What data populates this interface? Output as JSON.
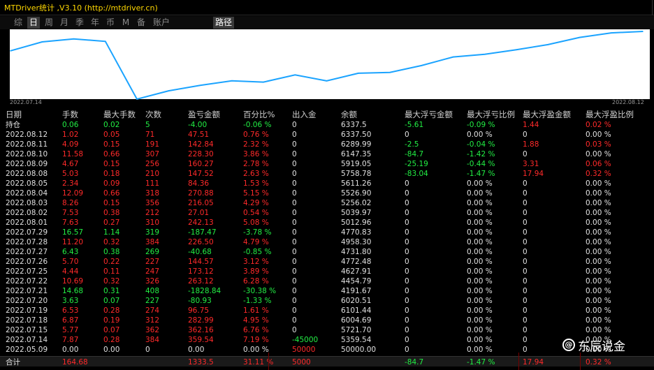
{
  "window": {
    "title": "MTDriver统计 ,V3.10 (http://mtdriver.cn)"
  },
  "toolbar": {
    "tabs": [
      "综",
      "日",
      "周",
      "月",
      "季",
      "年",
      "币",
      "M",
      "备",
      "账户"
    ],
    "active": "日",
    "route_label": "路径"
  },
  "chart_data": {
    "type": "line",
    "x_start_label": "2022.07.14",
    "x_end_label": "2022.08.12",
    "series": [
      {
        "values": [
          5721.7,
          6004.69,
          6101.44,
          6020.51,
          4191.67,
          4454.79,
          4627.91,
          4772.48,
          4731.8,
          4958.3,
          4770.83,
          5012.96,
          5039.97,
          5256.02,
          5526.9,
          5611.26,
          5758.78,
          5919.05,
          6147.35,
          6289.99,
          6337.5
        ]
      }
    ],
    "color": "#1aa3ff"
  },
  "headers": [
    "日期",
    "手数",
    "最大手数",
    "次数",
    "盈亏金额",
    "百分比%",
    "出入金",
    "余额",
    "最大浮亏金额",
    "最大浮亏比例",
    "最大浮盈金额",
    "最大浮盈比例"
  ],
  "rows": [
    {
      "c": [
        "持仓",
        "0.06",
        "0.02",
        "5",
        "-4.00",
        "-0.06 %",
        "0",
        "6337.5",
        "-5.61",
        "-0.09 %",
        "1.44",
        "0.02 %"
      ],
      "k": [
        "w",
        "g",
        "g",
        "g",
        "g",
        "g",
        "w",
        "w",
        "g",
        "g",
        "r",
        "r"
      ]
    },
    {
      "c": [
        "2022.08.12",
        "1.02",
        "0.05",
        "71",
        "47.51",
        "0.76 %",
        "0",
        "6337.50",
        "0",
        "0.00 %",
        "0",
        "0.00 %"
      ],
      "k": [
        "w",
        "r",
        "r",
        "r",
        "r",
        "r",
        "w",
        "w",
        "w",
        "w",
        "w",
        "w"
      ]
    },
    {
      "c": [
        "2022.08.11",
        "4.09",
        "0.15",
        "191",
        "142.84",
        "2.32 %",
        "0",
        "6289.99",
        "-2.5",
        "-0.04 %",
        "1.88",
        "0.03 %"
      ],
      "k": [
        "w",
        "r",
        "r",
        "r",
        "r",
        "r",
        "w",
        "w",
        "g",
        "g",
        "r",
        "r"
      ]
    },
    {
      "c": [
        "2022.08.10",
        "11.58",
        "0.66",
        "307",
        "228.30",
        "3.86 %",
        "0",
        "6147.35",
        "-84.7",
        "-1.42 %",
        "0",
        "0.00 %"
      ],
      "k": [
        "w",
        "r",
        "r",
        "r",
        "r",
        "r",
        "w",
        "w",
        "g",
        "g",
        "w",
        "w"
      ]
    },
    {
      "c": [
        "2022.08.09",
        "4.67",
        "0.15",
        "256",
        "160.27",
        "2.78 %",
        "0",
        "5919.05",
        "-25.19",
        "-0.44 %",
        "3.31",
        "0.06 %"
      ],
      "k": [
        "w",
        "r",
        "r",
        "r",
        "r",
        "r",
        "w",
        "w",
        "g",
        "g",
        "r",
        "r"
      ]
    },
    {
      "c": [
        "2022.08.08",
        "5.03",
        "0.18",
        "210",
        "147.52",
        "2.63 %",
        "0",
        "5758.78",
        "-83.04",
        "-1.47 %",
        "17.94",
        "0.32 %"
      ],
      "k": [
        "w",
        "r",
        "r",
        "r",
        "r",
        "r",
        "w",
        "w",
        "g",
        "g",
        "r",
        "r"
      ]
    },
    {
      "c": [
        "2022.08.05",
        "2.34",
        "0.09",
        "111",
        "84.36",
        "1.53 %",
        "0",
        "5611.26",
        "0",
        "0.00 %",
        "0",
        "0.00 %"
      ],
      "k": [
        "w",
        "r",
        "r",
        "r",
        "r",
        "r",
        "w",
        "w",
        "w",
        "w",
        "w",
        "w"
      ]
    },
    {
      "c": [
        "2022.08.04",
        "12.09",
        "0.66",
        "318",
        "270.88",
        "5.15 %",
        "0",
        "5526.90",
        "0",
        "0.00 %",
        "0",
        "0.00 %"
      ],
      "k": [
        "w",
        "r",
        "r",
        "r",
        "r",
        "r",
        "w",
        "w",
        "w",
        "w",
        "w",
        "w"
      ]
    },
    {
      "c": [
        "2022.08.03",
        "8.26",
        "0.15",
        "356",
        "216.05",
        "4.29 %",
        "0",
        "5256.02",
        "0",
        "0.00 %",
        "0",
        "0.00 %"
      ],
      "k": [
        "w",
        "r",
        "r",
        "r",
        "r",
        "r",
        "w",
        "w",
        "w",
        "w",
        "w",
        "w"
      ]
    },
    {
      "c": [
        "2022.08.02",
        "7.53",
        "0.38",
        "212",
        "27.01",
        "0.54 %",
        "0",
        "5039.97",
        "0",
        "0.00 %",
        "0",
        "0.00 %"
      ],
      "k": [
        "w",
        "r",
        "r",
        "r",
        "r",
        "r",
        "w",
        "w",
        "w",
        "w",
        "w",
        "w"
      ]
    },
    {
      "c": [
        "2022.08.01",
        "7.63",
        "0.27",
        "310",
        "242.13",
        "5.08 %",
        "0",
        "5012.96",
        "0",
        "0.00 %",
        "0",
        "0.00 %"
      ],
      "k": [
        "w",
        "r",
        "r",
        "r",
        "r",
        "r",
        "w",
        "w",
        "w",
        "w",
        "w",
        "w"
      ]
    },
    {
      "c": [
        "2022.07.29",
        "16.57",
        "1.14",
        "319",
        "-187.47",
        "-3.78 %",
        "0",
        "4770.83",
        "0",
        "0.00 %",
        "0",
        "0.00 %"
      ],
      "k": [
        "w",
        "g",
        "g",
        "g",
        "g",
        "g",
        "w",
        "w",
        "w",
        "w",
        "w",
        "w"
      ]
    },
    {
      "c": [
        "2022.07.28",
        "11.20",
        "0.32",
        "384",
        "226.50",
        "4.79 %",
        "0",
        "4958.30",
        "0",
        "0.00 %",
        "0",
        "0.00 %"
      ],
      "k": [
        "w",
        "r",
        "r",
        "r",
        "r",
        "r",
        "w",
        "w",
        "w",
        "w",
        "w",
        "w"
      ]
    },
    {
      "c": [
        "2022.07.27",
        "6.43",
        "0.38",
        "269",
        "-40.68",
        "-0.85 %",
        "0",
        "4731.80",
        "0",
        "0.00 %",
        "0",
        "0.00 %"
      ],
      "k": [
        "w",
        "g",
        "g",
        "g",
        "g",
        "g",
        "w",
        "w",
        "w",
        "w",
        "w",
        "w"
      ]
    },
    {
      "c": [
        "2022.07.26",
        "5.70",
        "0.22",
        "227",
        "144.57",
        "3.12 %",
        "0",
        "4772.48",
        "0",
        "0.00 %",
        "0",
        "0.00 %"
      ],
      "k": [
        "w",
        "r",
        "r",
        "r",
        "r",
        "r",
        "w",
        "w",
        "w",
        "w",
        "w",
        "w"
      ]
    },
    {
      "c": [
        "2022.07.25",
        "4.44",
        "0.11",
        "247",
        "173.12",
        "3.89 %",
        "0",
        "4627.91",
        "0",
        "0.00 %",
        "0",
        "0.00 %"
      ],
      "k": [
        "w",
        "r",
        "r",
        "r",
        "r",
        "r",
        "w",
        "w",
        "w",
        "w",
        "w",
        "w"
      ]
    },
    {
      "c": [
        "2022.07.22",
        "10.69",
        "0.32",
        "326",
        "263.12",
        "6.28 %",
        "0",
        "4454.79",
        "0",
        "0.00 %",
        "0",
        "0.00 %"
      ],
      "k": [
        "w",
        "r",
        "r",
        "r",
        "r",
        "r",
        "w",
        "w",
        "w",
        "w",
        "w",
        "w"
      ]
    },
    {
      "c": [
        "2022.07.21",
        "14.68",
        "0.31",
        "408",
        "-1828.84",
        "-30.38 %",
        "0",
        "4191.67",
        "0",
        "0.00 %",
        "0",
        "0.00 %"
      ],
      "k": [
        "w",
        "g",
        "g",
        "g",
        "g",
        "g",
        "w",
        "w",
        "w",
        "w",
        "w",
        "w"
      ]
    },
    {
      "c": [
        "2022.07.20",
        "3.63",
        "0.07",
        "227",
        "-80.93",
        "-1.33 %",
        "0",
        "6020.51",
        "0",
        "0.00 %",
        "0",
        "0.00 %"
      ],
      "k": [
        "w",
        "g",
        "g",
        "g",
        "g",
        "g",
        "w",
        "w",
        "w",
        "w",
        "w",
        "w"
      ]
    },
    {
      "c": [
        "2022.07.19",
        "6.53",
        "0.28",
        "274",
        "96.75",
        "1.61 %",
        "0",
        "6101.44",
        "0",
        "0.00 %",
        "0",
        "0.00 %"
      ],
      "k": [
        "w",
        "r",
        "r",
        "r",
        "r",
        "r",
        "w",
        "w",
        "w",
        "w",
        "w",
        "w"
      ]
    },
    {
      "c": [
        "2022.07.18",
        "6.87",
        "0.19",
        "312",
        "282.99",
        "4.95 %",
        "0",
        "6004.69",
        "0",
        "0.00 %",
        "0",
        "0.00 %"
      ],
      "k": [
        "w",
        "r",
        "r",
        "r",
        "r",
        "r",
        "w",
        "w",
        "w",
        "w",
        "w",
        "w"
      ]
    },
    {
      "c": [
        "2022.07.15",
        "5.77",
        "0.07",
        "362",
        "362.16",
        "6.76 %",
        "0",
        "5721.70",
        "0",
        "0.00 %",
        "0",
        "0.00 %"
      ],
      "k": [
        "w",
        "r",
        "r",
        "r",
        "r",
        "r",
        "w",
        "w",
        "w",
        "w",
        "w",
        "w"
      ]
    },
    {
      "c": [
        "2022.07.14",
        "7.87",
        "0.28",
        "384",
        "359.54",
        "7.19 %",
        "-45000",
        "5359.54",
        "0",
        "0.00 %",
        "0",
        "0.00 %"
      ],
      "k": [
        "w",
        "r",
        "r",
        "r",
        "r",
        "r",
        "g",
        "w",
        "w",
        "w",
        "w",
        "w"
      ]
    },
    {
      "c": [
        "2022.05.09",
        "0.00",
        "0.00",
        "0",
        "0.00",
        "0.00 %",
        "50000",
        "50000.00",
        "0",
        "0.00 %",
        "0",
        "0.00 %"
      ],
      "k": [
        "w",
        "w",
        "w",
        "w",
        "w",
        "w",
        "r",
        "w",
        "w",
        "w",
        "w",
        "w"
      ]
    }
  ],
  "total": {
    "c": [
      "合计",
      "164.68",
      "",
      "",
      "1333.5",
      "31.11 %",
      "5000",
      "",
      "-84.7",
      "-1.47 %",
      "17.94",
      "0.32 %"
    ],
    "k": [
      "w",
      "r",
      "w",
      "w",
      "r",
      "r",
      "r",
      "w",
      "g",
      "g",
      "r",
      "r"
    ]
  },
  "watermark": "东辰说金",
  "watermark_icon": "weibo-logo-icon"
}
